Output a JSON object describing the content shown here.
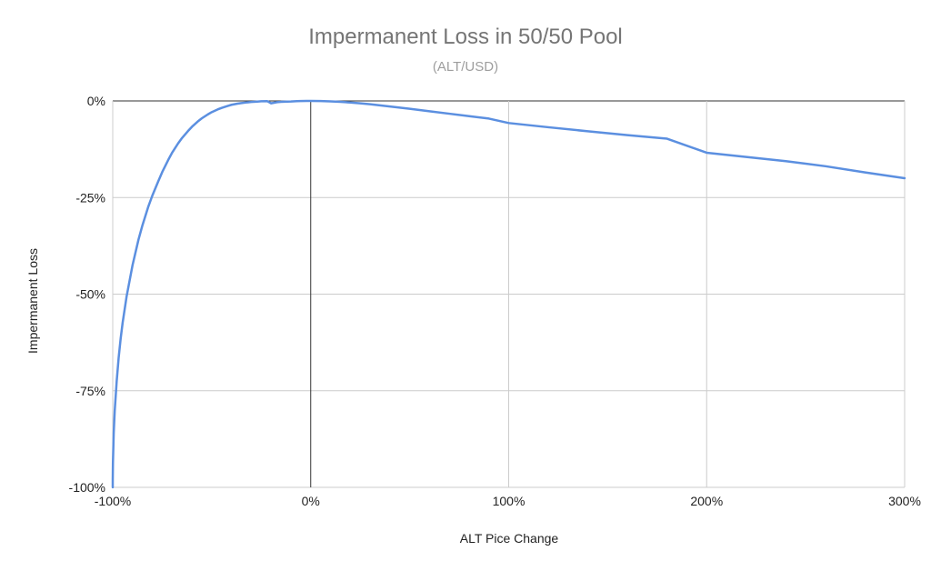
{
  "chart_data": {
    "type": "line",
    "title": "Impermanent Loss in 50/50 Pool",
    "subtitle": "(ALT/USD)",
    "xlabel": "ALT Pice Change",
    "ylabel": "Impermanent Loss",
    "xlim": [
      -100,
      300
    ],
    "ylim": [
      -100,
      0
    ],
    "x_ticks": [
      -100,
      0,
      100,
      200,
      300
    ],
    "y_ticks": [
      0,
      -25,
      -50,
      -75,
      -100
    ],
    "x_tick_labels": [
      "-100%",
      "0%",
      "100%",
      "200%",
      "300%"
    ],
    "y_tick_labels": [
      "0%",
      "-25%",
      "-50%",
      "-75%",
      "-100%"
    ],
    "grid": true,
    "legend": "none",
    "line_color": "#5b8fe0",
    "series": [
      {
        "x": [
          -100,
          -99.99,
          -99.9,
          -99.5,
          -99,
          -98,
          -97,
          -96,
          -95,
          -93,
          -90,
          -87,
          -85,
          -82,
          -80,
          -77,
          -75,
          -72,
          -70,
          -67,
          -65,
          -62,
          -60,
          -57,
          -55,
          -52,
          -50,
          -47,
          -45,
          -42,
          -40,
          -37,
          -35,
          -32,
          -30,
          -27,
          -25,
          -22,
          -20,
          -17,
          -15,
          -12,
          -10,
          -7,
          -5,
          -2,
          0,
          5,
          10,
          15,
          20,
          25,
          30,
          40,
          50,
          60,
          70,
          80,
          90,
          100,
          120,
          140,
          160,
          180,
          200,
          220,
          240,
          260,
          280,
          300
        ],
        "y": [
          -100,
          -98,
          -93.7,
          -85.9,
          -80.2,
          -72.5,
          -66.4,
          -61.5,
          -57.4,
          -50.6,
          -42.5,
          -35.9,
          -32.2,
          -27.3,
          -24.5,
          -20.8,
          -18.4,
          -15.3,
          -13.4,
          -11.0,
          -9.6,
          -7.8,
          -6.7,
          -5.3,
          -4.5,
          -3.5,
          -2.9,
          -2.2,
          -1.8,
          -1.3,
          -1.0,
          -0.7,
          -0.56,
          -0.37,
          -0.28,
          -0.17,
          -0.1,
          -0.05,
          -0.62,
          -0.33,
          -0.25,
          -0.17,
          -0.14,
          -0.06,
          -0.03,
          -0.01,
          0,
          -0.03,
          -0.11,
          -0.24,
          -0.41,
          -0.62,
          -0.86,
          -1.43,
          -2.02,
          -2.67,
          -3.31,
          -3.95,
          -4.57,
          -5.72,
          -6.81,
          -7.85,
          -8.84,
          -9.77,
          -13.4,
          -14.5,
          -15.6,
          -16.9,
          -18.5,
          -20.0
        ]
      }
    ]
  }
}
